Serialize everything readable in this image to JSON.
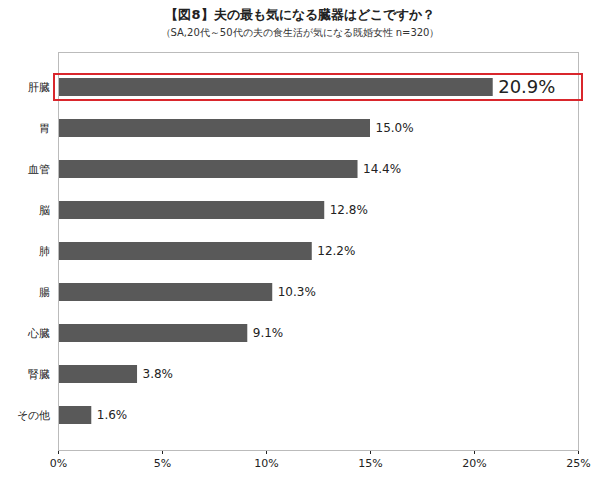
{
  "chart_data": {
    "type": "bar",
    "title": "【図8】夫の最も気になる臓器はどこですか？",
    "subtitle": "（SA,20代～50代の夫の食生活が気になる既婚女性 n=320）",
    "orientation": "horizontal",
    "categories": [
      "肝臓",
      "胃",
      "血管",
      "脳",
      "肺",
      "腸",
      "心臓",
      "腎臓",
      "その他"
    ],
    "values": [
      20.9,
      15.0,
      14.4,
      12.8,
      12.2,
      10.3,
      9.1,
      3.8,
      1.6
    ],
    "value_labels": [
      "20.9%",
      "15.0%",
      "14.4%",
      "12.8%",
      "12.2%",
      "10.3%",
      "9.1%",
      "3.8%",
      "1.6%"
    ],
    "data_labels": true,
    "color": "#595959",
    "grid": false,
    "xlim": [
      0,
      25
    ],
    "xticks": [
      {
        "value": 0,
        "label": "0%"
      },
      {
        "value": 5,
        "label": "5%"
      },
      {
        "value": 10,
        "label": "10%"
      },
      {
        "value": 15,
        "label": "15%"
      },
      {
        "value": 20,
        "label": "20%"
      },
      {
        "value": 25,
        "label": "25%"
      }
    ]
  }
}
